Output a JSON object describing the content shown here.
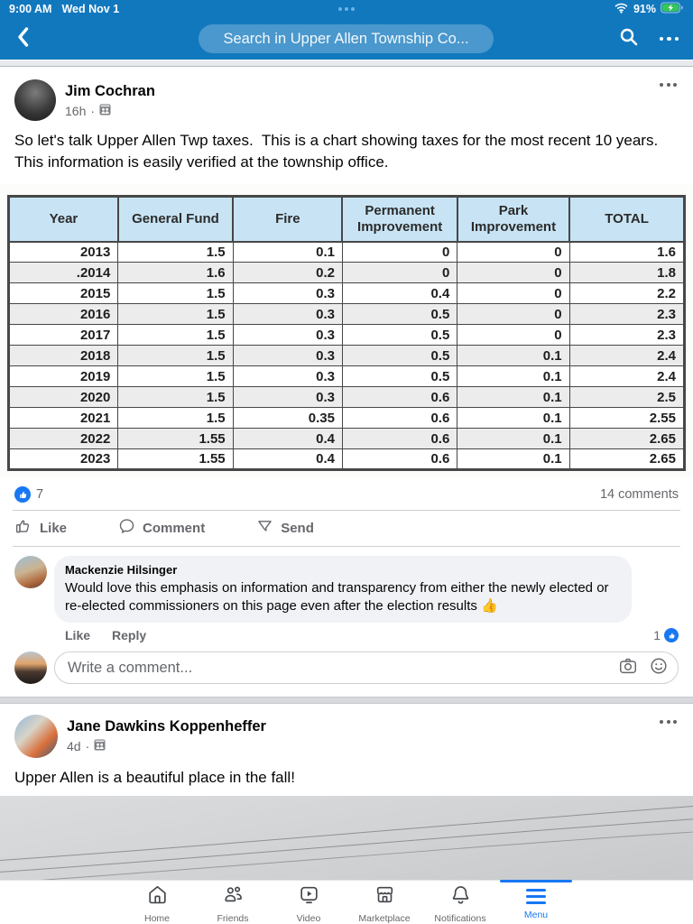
{
  "status_bar": {
    "time": "9:00 AM",
    "date": "Wed Nov 1",
    "battery_percent": "91%",
    "icons": [
      "wifi-icon",
      "battery-charging-icon",
      "handle-dots"
    ]
  },
  "header": {
    "search_placeholder": "Search in Upper Allen Township Co...",
    "icons": [
      "back-icon",
      "search-icon",
      "more-icon"
    ]
  },
  "post1": {
    "author": "Jim Cochran",
    "time": "16h",
    "privacy_icon": "group-icon",
    "body": "So let's talk Upper Allen Twp taxes.  This is a chart showing taxes for the most recent 10 years. This information is easily verified at the township office.",
    "reactions_count": "7",
    "comments_label": "14 comments",
    "actions": {
      "like": "Like",
      "comment": "Comment",
      "send": "Send"
    },
    "comment_input": {
      "placeholder": "Write a comment..."
    }
  },
  "chart_data": {
    "type": "table",
    "columns": [
      "Year",
      "General Fund",
      "Fire",
      "Permanent Improvement",
      "Park Improvement",
      "TOTAL"
    ],
    "rows": [
      [
        "2013",
        "1.5",
        "0.1",
        "0",
        "0",
        "1.6"
      ],
      [
        ".2014",
        "1.6",
        "0.2",
        "0",
        "0",
        "1.8"
      ],
      [
        "2015",
        "1.5",
        "0.3",
        "0.4",
        "0",
        "2.2"
      ],
      [
        "2016",
        "1.5",
        "0.3",
        "0.5",
        "0",
        "2.3"
      ],
      [
        "2017",
        "1.5",
        "0.3",
        "0.5",
        "0",
        "2.3"
      ],
      [
        "2018",
        "1.5",
        "0.3",
        "0.5",
        "0.1",
        "2.4"
      ],
      [
        "2019",
        "1.5",
        "0.3",
        "0.5",
        "0.1",
        "2.4"
      ],
      [
        "2020",
        "1.5",
        "0.3",
        "0.6",
        "0.1",
        "2.5"
      ],
      [
        "2021",
        "1.5",
        "0.35",
        "0.6",
        "0.1",
        "2.55"
      ],
      [
        "2022",
        "1.55",
        "0.4",
        "0.6",
        "0.1",
        "2.65"
      ],
      [
        "2023",
        "1.55",
        "0.4",
        "0.6",
        "0.1",
        "2.65"
      ]
    ]
  },
  "comment": {
    "author": "Mackenzie Hilsinger",
    "text": "Would love this emphasis on information and transparency from either the newly elected or re-elected commissioners on this page even after the election results 👍",
    "like_label": "Like",
    "reply_label": "Reply",
    "like_count": "1"
  },
  "post2": {
    "author": "Jane Dawkins Koppenheffer",
    "time": "4d",
    "privacy_icon": "group-icon",
    "body": "Upper Allen is a beautiful place in the fall!"
  },
  "bottom_nav": {
    "active": "Menu",
    "items": [
      {
        "label": "Home",
        "icon": "home-icon"
      },
      {
        "label": "Friends",
        "icon": "friends-icon"
      },
      {
        "label": "Video",
        "icon": "video-icon"
      },
      {
        "label": "Marketplace",
        "icon": "marketplace-icon"
      },
      {
        "label": "Notifications",
        "icon": "notifications-icon"
      },
      {
        "label": "Menu",
        "icon": "menu-icon"
      }
    ]
  },
  "colors": {
    "header_blue": "#1278BE",
    "facebook_blue": "#1877f2",
    "battery_green": "#35c759",
    "table_header_blue": "#c8e4f4"
  }
}
